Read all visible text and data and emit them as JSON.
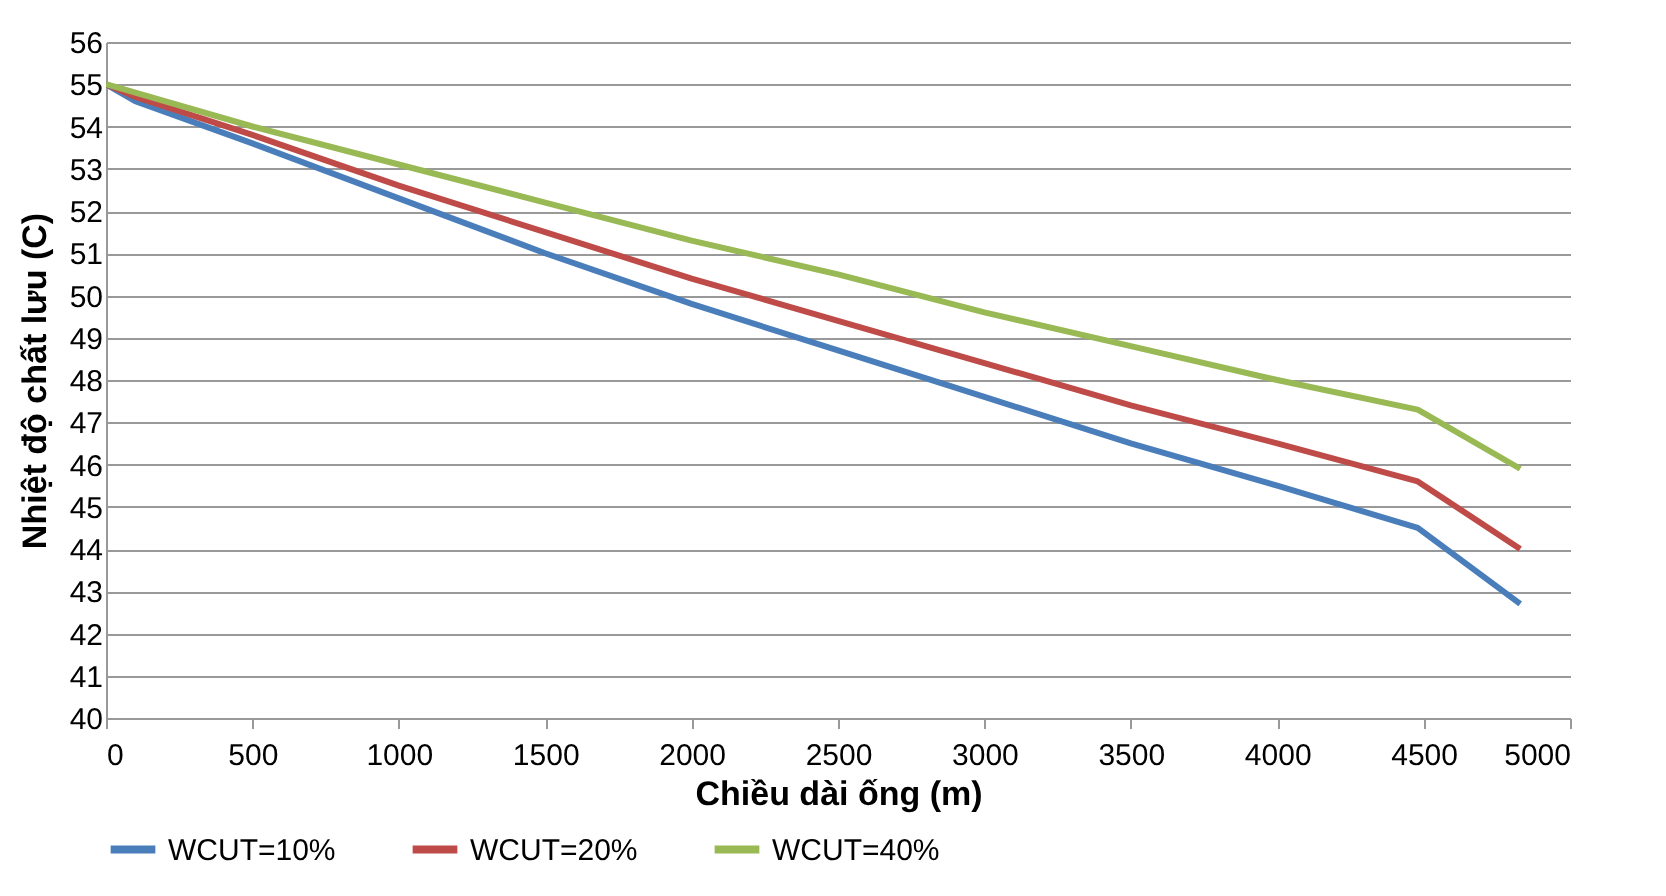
{
  "chart_data": {
    "type": "line",
    "xlabel": "Chiều dài ống (m)",
    "ylabel": "Nhiệt độ chất lưu (C)",
    "x": [
      0,
      100,
      500,
      1000,
      1500,
      2000,
      2500,
      3000,
      3500,
      4000,
      4480,
      4830
    ],
    "series": [
      {
        "name": "WCUT=10%",
        "color": "#4a7ebb",
        "values": [
          55,
          54.6,
          53.6,
          52.3,
          51.0,
          49.8,
          48.7,
          47.6,
          46.5,
          45.5,
          44.5,
          42.7
        ]
      },
      {
        "name": "WCUT=20%",
        "color": "#be4b48",
        "values": [
          55,
          54.7,
          53.8,
          52.6,
          51.5,
          50.4,
          49.4,
          48.4,
          47.4,
          46.5,
          45.6,
          44.0
        ]
      },
      {
        "name": "WCUT=40%",
        "color": "#98b954",
        "values": [
          55,
          54.8,
          54.0,
          53.1,
          52.2,
          51.3,
          50.5,
          49.6,
          48.8,
          48.0,
          47.3,
          45.9
        ]
      }
    ],
    "xlim": [
      0,
      5000
    ],
    "xticks": [
      0,
      500,
      1000,
      1500,
      2000,
      2500,
      3000,
      3500,
      4000,
      4500,
      5000
    ],
    "ylim": [
      40,
      56
    ],
    "yticks": [
      40,
      41,
      42,
      43,
      44,
      45,
      46,
      47,
      48,
      49,
      50,
      51,
      52,
      53,
      54,
      55,
      56
    ],
    "grid": "y",
    "legend": "bottom",
    "marker": "none",
    "line_style": "solid"
  }
}
